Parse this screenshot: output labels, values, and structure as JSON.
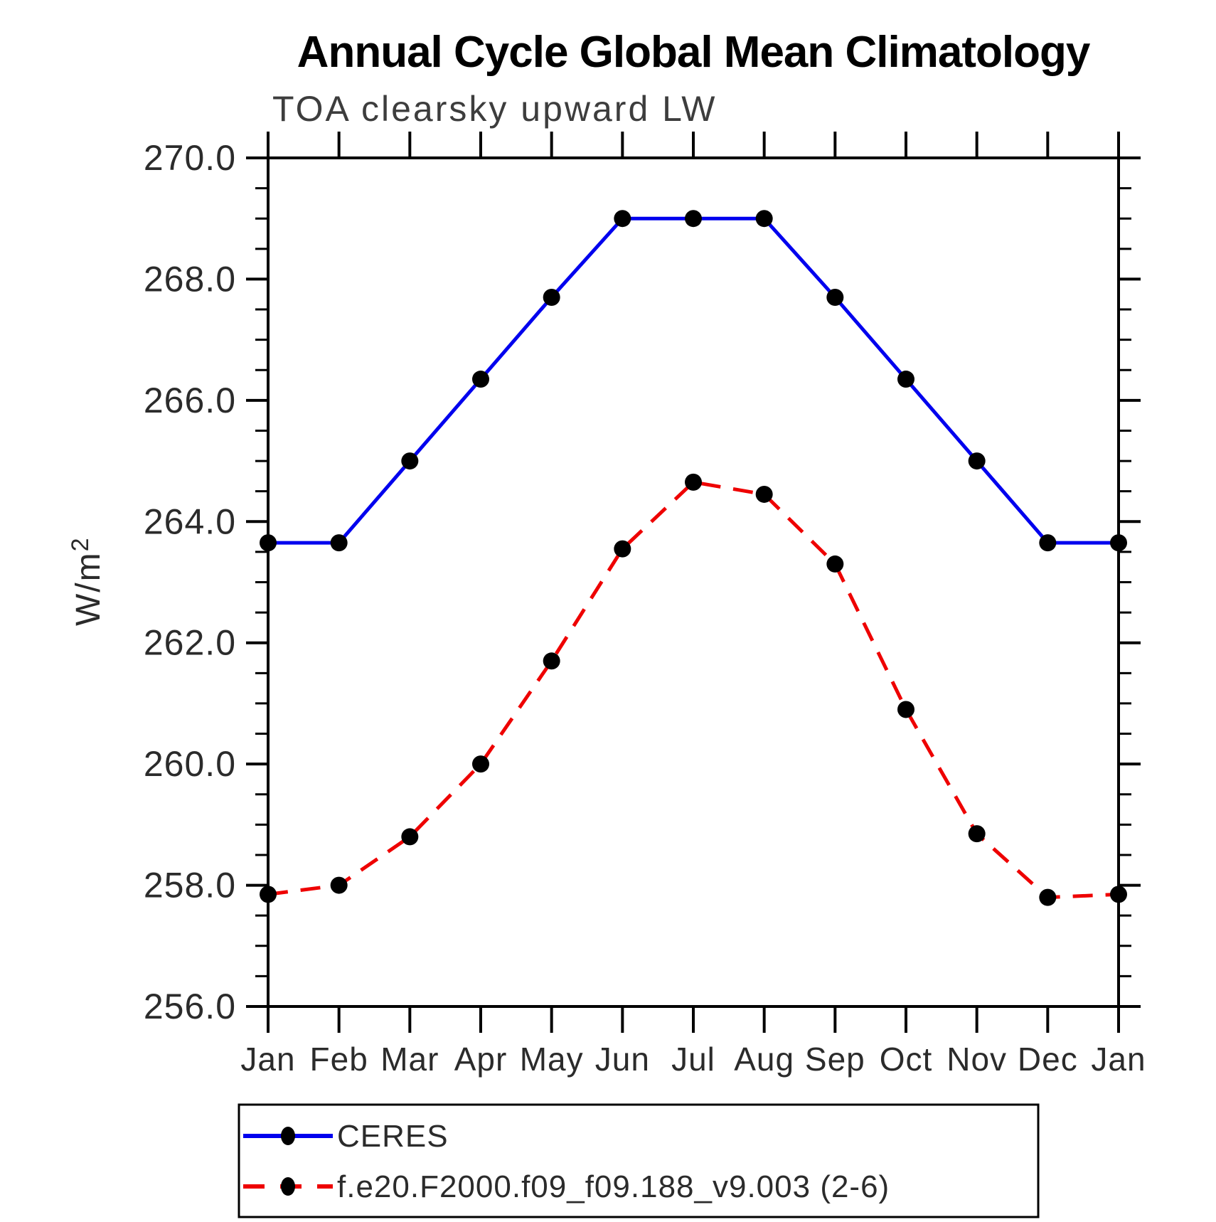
{
  "header": {
    "title": "Annual Cycle Global Mean Climatology",
    "subtitle": "TOA clearsky upward LW"
  },
  "chart_data": {
    "type": "line",
    "x_categories": [
      "Jan",
      "Feb",
      "Mar",
      "Apr",
      "May",
      "Jun",
      "Jul",
      "Aug",
      "Sep",
      "Oct",
      "Nov",
      "Dec",
      "Jan"
    ],
    "series": [
      {
        "name": "CERES",
        "color": "#0000ee",
        "style": "solid",
        "values": [
          263.65,
          263.65,
          265.0,
          266.35,
          267.7,
          269.0,
          269.0,
          269.0,
          267.7,
          266.35,
          265.0,
          263.65,
          263.65
        ]
      },
      {
        "name": "f.e20.F2000.f09_f09.188_v9.003 (2-6)",
        "color": "#ee0000",
        "style": "dashed",
        "values": [
          257.85,
          258.0,
          258.8,
          260.0,
          261.7,
          263.55,
          264.65,
          264.45,
          263.3,
          260.9,
          258.85,
          257.8,
          257.85
        ]
      }
    ],
    "ylabel": {
      "base": "W/m",
      "exp": "2"
    },
    "ylim": [
      256.0,
      270.0
    ],
    "y_major_step": 2.0,
    "y_minor_step": 0.5,
    "y_tick_labels": [
      "256.0",
      "258.0",
      "260.0",
      "262.0",
      "264.0",
      "266.0",
      "268.0",
      "270.0"
    ],
    "marker_color": "#000000",
    "axis_color": "#000000",
    "text_color": "#2b2b2b",
    "legend_position": "bottom-left"
  }
}
